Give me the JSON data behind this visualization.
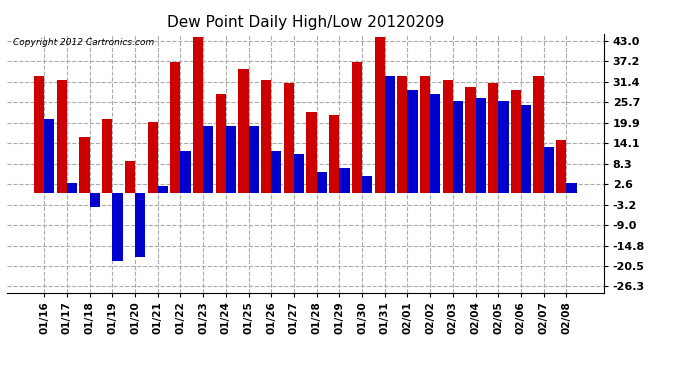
{
  "title": "Dew Point Daily High/Low 20120209",
  "copyright": "Copyright 2012 Cartronics.com",
  "dates": [
    "01/16",
    "01/17",
    "01/18",
    "01/19",
    "01/20",
    "01/21",
    "01/22",
    "01/23",
    "01/24",
    "01/25",
    "01/26",
    "01/27",
    "01/28",
    "01/29",
    "01/30",
    "01/31",
    "02/01",
    "02/02",
    "02/03",
    "02/04",
    "02/05",
    "02/06",
    "02/07",
    "02/08"
  ],
  "highs": [
    33.0,
    32.0,
    16.0,
    21.0,
    9.0,
    20.0,
    37.0,
    44.0,
    28.0,
    35.0,
    32.0,
    31.0,
    23.0,
    22.0,
    37.0,
    44.0,
    33.0,
    33.0,
    32.0,
    30.0,
    31.0,
    29.0,
    33.0,
    15.0
  ],
  "lows": [
    21.0,
    3.0,
    -4.0,
    -19.0,
    -18.0,
    2.0,
    12.0,
    19.0,
    19.0,
    19.0,
    12.0,
    11.0,
    6.0,
    7.0,
    5.0,
    33.0,
    29.0,
    28.0,
    26.0,
    27.0,
    26.0,
    25.0,
    13.0,
    3.0
  ],
  "bar_color_high": "#cc0000",
  "bar_color_low": "#0000cc",
  "yticks": [
    43.0,
    37.2,
    31.4,
    25.7,
    19.9,
    14.1,
    8.3,
    2.6,
    -3.2,
    -9.0,
    -14.8,
    -20.5,
    -26.3
  ],
  "ylim_min": -28.0,
  "ylim_max": 45.0,
  "background_color": "#ffffff",
  "grid_color": "#aaaaaa",
  "plot_bg_color": "#ffffff"
}
